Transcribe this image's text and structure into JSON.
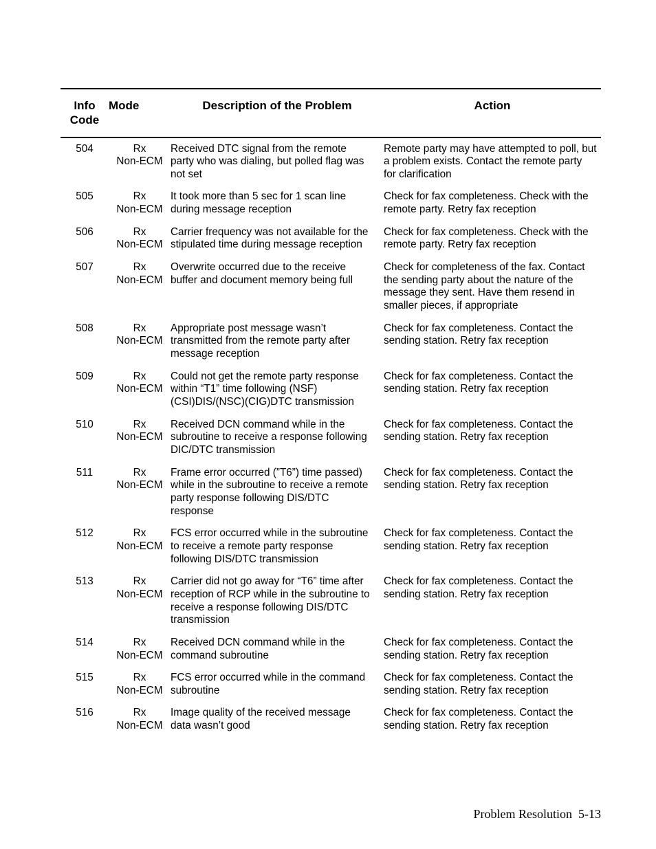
{
  "columns": [
    "Info Code",
    "Mode",
    "Description of the Problem",
    "Action"
  ],
  "rows": [
    {
      "code": "504",
      "mode": "Rx Non-ECM",
      "desc": "Received DTC signal from the remote party who was dialing, but polled flag was not set",
      "action": "Remote party may have attempted to poll, but a problem exists. Contact the remote party for clarification"
    },
    {
      "code": "505",
      "mode": "Rx Non-ECM",
      "desc": "It took more than 5 sec for 1 scan line during message reception",
      "action": "Check for fax completeness. Check with the remote party. Retry fax reception"
    },
    {
      "code": "506",
      "mode": "Rx Non-ECM",
      "desc": "Carrier frequency was not available for the stipulated time during message reception",
      "action": "Check for fax completeness. Check with the remote party. Retry fax reception"
    },
    {
      "code": "507",
      "mode": "Rx Non-ECM",
      "desc": "Overwrite occurred due to the receive buffer and document memory being full",
      "action": "Check for completeness of the fax. Contact the sending party about the nature of the message they sent. Have them resend in smaller pieces, if appropriate"
    },
    {
      "code": "508",
      "mode": "Rx Non-ECM",
      "desc": "Appropriate post message wasn’t transmitted from the remote party after message reception",
      "action": "Check for fax completeness. Contact the sending station. Retry fax reception"
    },
    {
      "code": "509",
      "mode": "Rx Non-ECM",
      "desc": "Could not get the remote party response within “T1” time following (NSF)(CSI)DIS/(NSC)(CIG)DTC transmission",
      "action": "Check for fax completeness. Contact the sending station. Retry fax reception"
    },
    {
      "code": "510",
      "mode": "Rx Non-ECM",
      "desc": "Received DCN command while in the subroutine to receive a response following DIC/DTC transmission",
      "action": "Check for fax completeness. Contact the sending station. Retry fax reception"
    },
    {
      "code": "511",
      "mode": "Rx Non-ECM",
      "desc": "Frame error occurred (”T6”) time passed) while in the subroutine to receive a remote party response following DIS/DTC response",
      "action": "Check for fax completeness. Contact the sending station. Retry fax reception"
    },
    {
      "code": "512",
      "mode": "Rx Non-ECM",
      "desc": "FCS error occurred while in the subroutine to receive a remote party response following DIS/DTC transmission",
      "action": "Check for fax completeness. Contact the sending station. Retry fax reception"
    },
    {
      "code": "513",
      "mode": "Rx Non-ECM",
      "desc": "Carrier did not go away for “T6” time after reception of RCP while in the subroutine to receive a response following DIS/DTC transmission",
      "action": "Check for fax completeness. Contact the sending station. Retry fax reception"
    },
    {
      "code": "514",
      "mode": "Rx Non-ECM",
      "desc": "Received DCN command while in the command subroutine",
      "action": "Check for fax completeness. Contact the sending station. Retry fax reception"
    },
    {
      "code": "515",
      "mode": "Rx Non-ECM",
      "desc": "FCS error occurred while in the command subroutine",
      "action": "Check for fax completeness. Contact the sending station. Retry fax reception"
    },
    {
      "code": "516",
      "mode": "Rx Non-ECM",
      "desc": "Image quality of the received message data wasn’t good",
      "action": "Check for fax completeness. Contact the sending station. Retry fax reception"
    }
  ],
  "footer_section": "Problem Resolution",
  "footer_page": "5-13"
}
